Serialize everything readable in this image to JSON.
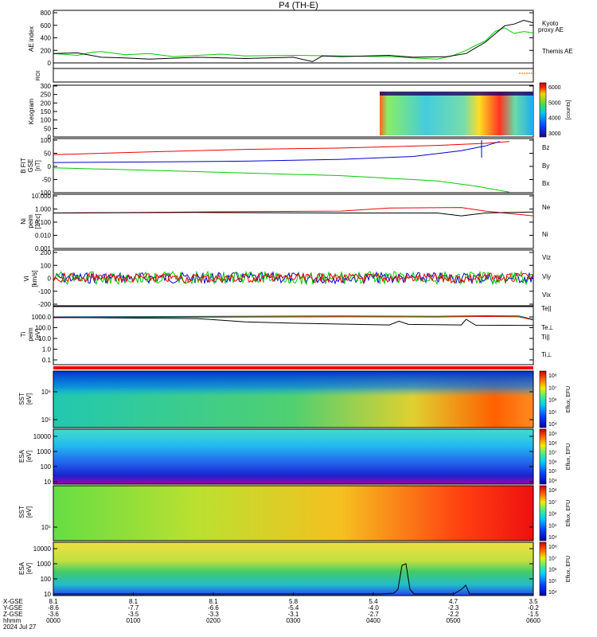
{
  "title": "P4 (TH-E)",
  "colors": {
    "kyoto": "#00cc00",
    "themis": "#000000",
    "red": "#ee0000",
    "green": "#00cc00",
    "blue": "#0000cc",
    "orange": "#ff7700"
  },
  "chart_data": [
    {
      "type": "line",
      "panel": "ae",
      "ylabel": "AE index",
      "ylim": [
        0,
        800
      ],
      "yticks": [
        "800",
        "600",
        "400",
        "200",
        "0"
      ],
      "series": [
        {
          "name": "Kyoto proxy AE",
          "color": "#00cc00",
          "points": [
            [
              0,
              150
            ],
            [
              0.05,
              120
            ],
            [
              0.08,
              170
            ],
            [
              0.1,
              180
            ],
            [
              0.15,
              130
            ],
            [
              0.2,
              150
            ],
            [
              0.25,
              100
            ],
            [
              0.3,
              120
            ],
            [
              0.35,
              140
            ],
            [
              0.4,
              110
            ],
            [
              0.5,
              120
            ],
            [
              0.6,
              110
            ],
            [
              0.7,
              100
            ],
            [
              0.75,
              80
            ],
            [
              0.8,
              60
            ],
            [
              0.83,
              110
            ],
            [
              0.86,
              200
            ],
            [
              0.88,
              280
            ],
            [
              0.9,
              350
            ],
            [
              0.92,
              500
            ],
            [
              0.94,
              560
            ],
            [
              0.96,
              470
            ],
            [
              0.98,
              500
            ],
            [
              1.0,
              480
            ]
          ]
        },
        {
          "name": "Themis AE",
          "color": "#000000",
          "points": [
            [
              0,
              150
            ],
            [
              0.05,
              160
            ],
            [
              0.1,
              90
            ],
            [
              0.15,
              80
            ],
            [
              0.2,
              60
            ],
            [
              0.3,
              90
            ],
            [
              0.4,
              70
            ],
            [
              0.5,
              90
            ],
            [
              0.54,
              20
            ],
            [
              0.56,
              110
            ],
            [
              0.6,
              100
            ],
            [
              0.7,
              120
            ],
            [
              0.75,
              90
            ],
            [
              0.82,
              100
            ],
            [
              0.86,
              150
            ],
            [
              0.88,
              240
            ],
            [
              0.9,
              330
            ],
            [
              0.92,
              460
            ],
            [
              0.94,
              590
            ],
            [
              0.96,
              620
            ],
            [
              0.98,
              680
            ],
            [
              1.0,
              640
            ]
          ]
        }
      ],
      "labels": [
        "Kyoto",
        "proxy AE",
        "Themis AE"
      ]
    },
    {
      "type": "line",
      "panel": "roi",
      "ylabel": "ROI",
      "segment": {
        "x_start": 0.97,
        "x_end": 1.0,
        "color": "#ff7700"
      }
    },
    {
      "type": "heatmap",
      "panel": "keogram",
      "ylabel": "Keogram",
      "ylim": [
        0,
        300
      ],
      "yticks": [
        "300",
        "250",
        "200",
        "150",
        "100",
        "50",
        "0"
      ],
      "x_range": [
        0.68,
        1.0
      ],
      "colorbar": {
        "ticks": [
          "6000",
          "5000",
          "4000",
          "3000"
        ],
        "unit": "[counts]"
      }
    },
    {
      "type": "line",
      "panel": "bfgm",
      "ylabel": "B FIT",
      "ylabel_sub": "GSE",
      "ylabel_unit": "[nT]",
      "ylim": [
        -100,
        100
      ],
      "yticks": [
        "100",
        "50",
        "0",
        "-50",
        "-100"
      ],
      "series": [
        {
          "name": "Bz",
          "color": "#ee0000",
          "points": [
            [
              0,
              45
            ],
            [
              0.2,
              55
            ],
            [
              0.4,
              65
            ],
            [
              0.6,
              70
            ],
            [
              0.8,
              80
            ],
            [
              0.9,
              88
            ],
            [
              0.95,
              95
            ]
          ]
        },
        {
          "name": "By",
          "color": "#00cc00",
          "points": [
            [
              0,
              -5
            ],
            [
              0.2,
              -15
            ],
            [
              0.4,
              -25
            ],
            [
              0.6,
              -35
            ],
            [
              0.8,
              -55
            ],
            [
              0.88,
              -75
            ],
            [
              0.95,
              -98
            ]
          ]
        },
        {
          "name": "Bx",
          "color": "#0000cc",
          "points": [
            [
              0,
              15
            ],
            [
              0.2,
              17
            ],
            [
              0.4,
              20
            ],
            [
              0.6,
              27
            ],
            [
              0.75,
              38
            ],
            [
              0.85,
              60
            ],
            [
              0.9,
              78
            ],
            [
              0.93,
              95
            ]
          ]
        }
      ]
    },
    {
      "type": "line",
      "panel": "density",
      "ylabel": "Ni",
      "ylabel_sub": "peim",
      "ylabel_unit": "[1/cc]",
      "scale": "log",
      "ylim": [
        0.001,
        10
      ],
      "yticks": [
        "10.000",
        "1.000",
        "0.100",
        "0.010",
        "0.001"
      ],
      "series": [
        {
          "name": "Ne",
          "color": "#ee0000",
          "points": [
            [
              0,
              0.5
            ],
            [
              0.3,
              0.6
            ],
            [
              0.6,
              0.7
            ],
            [
              0.7,
              1.2
            ],
            [
              0.85,
              1.3
            ],
            [
              0.9,
              0.7
            ],
            [
              1.0,
              0.3
            ]
          ]
        },
        {
          "name": "Ni",
          "color": "#000000",
          "points": [
            [
              0,
              0.5
            ],
            [
              0.3,
              0.55
            ],
            [
              0.6,
              0.5
            ],
            [
              0.8,
              0.5
            ],
            [
              0.85,
              0.3
            ],
            [
              0.9,
              0.5
            ],
            [
              1.0,
              0.6
            ]
          ]
        }
      ]
    },
    {
      "type": "line",
      "panel": "velocity",
      "ylabel": "Vi",
      "ylabel_unit": "[km/s]",
      "ylim": [
        -200,
        200
      ],
      "yticks": [
        "200",
        "100",
        "0",
        "-100",
        "-200"
      ],
      "series": [
        {
          "name": "Viz",
          "color": "#ee0000"
        },
        {
          "name": "Viy",
          "color": "#00cc00"
        },
        {
          "name": "Vix",
          "color": "#0000cc"
        }
      ]
    },
    {
      "type": "line",
      "panel": "temperature",
      "ylabel": "Ti",
      "ylabel_sub": "peim",
      "ylabel_unit": "[eV]",
      "scale": "log",
      "ylim": [
        0.1,
        1000
      ],
      "yticks": [
        "1000.0",
        "100.0",
        "10.0",
        "1.0",
        "0.1"
      ],
      "series": [
        {
          "name": "Te||",
          "color": "#000000"
        },
        {
          "name": "Te⊥",
          "color": "#ee0000"
        },
        {
          "name": "Ti||",
          "color": "#00cc00"
        },
        {
          "name": "Ti⊥",
          "color": "#0000cc"
        }
      ],
      "legend": [
        "Te||",
        "Te⊥",
        "Ti||",
        "Ti⊥"
      ]
    },
    {
      "type": "heatmap",
      "panel": "sst_e",
      "ylabel": "SST",
      "ylabel_unit": "[eV]",
      "yticks": [
        "10⁶",
        "10⁵"
      ],
      "colorbar": {
        "ticks": [
          "10⁸",
          "10⁷",
          "10⁶",
          "10⁵",
          "10⁴"
        ],
        "unit": "Eflux, EFU"
      }
    },
    {
      "type": "heatmap",
      "panel": "esa_e",
      "ylabel": "ESA",
      "ylabel_unit": "[eV]",
      "yticks": [
        "10000",
        "1000",
        "100",
        "10"
      ],
      "colorbar": {
        "ticks": [
          "10⁹",
          "10⁸",
          "10⁷",
          "10⁶",
          "10⁵",
          "10⁴"
        ],
        "unit": "Eflux, EFU"
      }
    },
    {
      "type": "heatmap",
      "panel": "sst_i",
      "ylabel": "SST",
      "ylabel_unit": "[eV]",
      "yticks": [
        "10⁵"
      ],
      "colorbar": {
        "ticks": [
          "10⁸",
          "10⁷",
          "10⁶",
          "10⁵",
          "10⁴"
        ],
        "unit": "Eflux, EFU"
      }
    },
    {
      "type": "heatmap",
      "panel": "esa_i",
      "ylabel": "ESA",
      "ylabel_unit": "[eV]",
      "yticks": [
        "10000",
        "1000",
        "100",
        "10"
      ],
      "colorbar": {
        "ticks": [
          "10⁸",
          "10⁷",
          "10⁶",
          "10⁵",
          "10⁴"
        ],
        "unit": "Eflux, EFU"
      }
    }
  ],
  "time_axis": {
    "row_labels": [
      "X-GSE",
      "Y-GSE",
      "Z-GSE",
      "hhmm",
      "2024 Jul 27"
    ],
    "columns": [
      {
        "x": "8.1",
        "y": "-8.6",
        "z": "-3.6",
        "t": "0000"
      },
      {
        "x": "8.1",
        "y": "-7.7",
        "z": "-3.5",
        "t": "0100"
      },
      {
        "x": "8.1",
        "y": "-6.6",
        "z": "-3.3",
        "t": "0200"
      },
      {
        "x": "5.8",
        "y": "-5.4",
        "z": "-3.1",
        "t": "0300"
      },
      {
        "x": "5.4",
        "y": "-4.0",
        "z": "-2.7",
        "t": "0400"
      },
      {
        "x": "4.7",
        "y": "-2.3",
        "z": "-2.2",
        "t": "0500"
      },
      {
        "x": "3.5",
        "y": "-0.2",
        "z": "-1.5",
        "t": "0600"
      }
    ]
  }
}
